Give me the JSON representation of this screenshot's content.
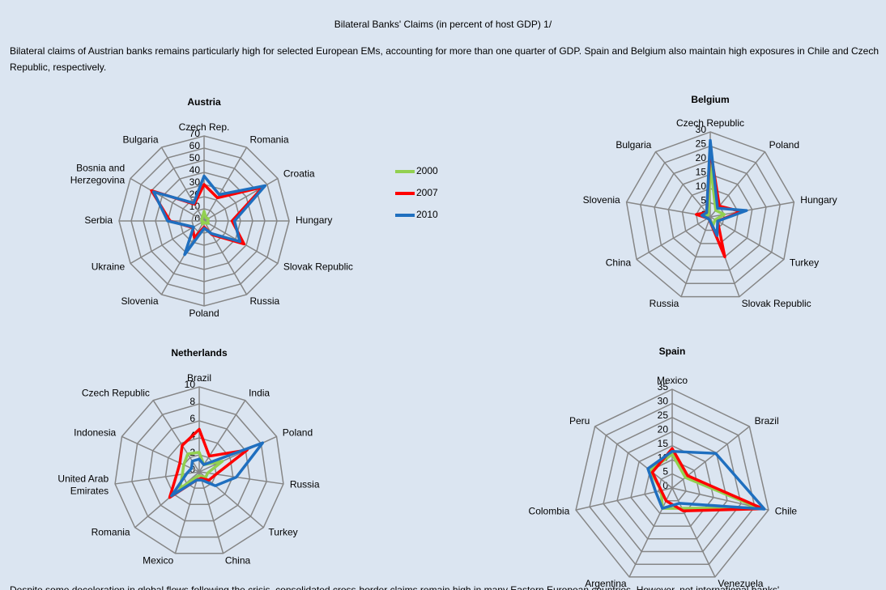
{
  "title": "Bilateral Banks' Claims (in percent of host GDP) 1/",
  "intro": "Bilateral claims of Austrian banks remains particularly high for selected European EMs, accounting for more than one quarter of GDP. Spain and Belgium also maintain high exposures in Chile and Czech Republic, respectively.",
  "footer": "Despite some deceleration in global flows following the crisis, consolidated cross-border claims remain high in many Eastern European countries. However, net international banks'",
  "chart_data": [
    {
      "type": "radar",
      "title": "Austria",
      "categories": [
        "Czech Rep.",
        "Romania",
        "Croatia",
        "Hungary",
        "Slovak Republic",
        "Russia",
        "Poland",
        "Slovenia",
        "Ukraine",
        "Serbia",
        "Bosnia and Herzegovina",
        "Bulgaria"
      ],
      "rlim": [
        0,
        70
      ],
      "rticks": [
        0,
        10,
        20,
        30,
        40,
        50,
        60,
        70
      ],
      "series": [
        {
          "name": "2000",
          "color": "#92d050",
          "values": [
            8,
            3,
            4,
            3,
            4,
            2,
            1,
            3,
            1,
            2,
            2,
            3
          ]
        },
        {
          "name": "2007",
          "color": "#ff0000",
          "values": [
            30,
            22,
            56,
            23,
            38,
            13,
            5,
            16,
            11,
            28,
            50,
            16
          ]
        },
        {
          "name": "2010",
          "color": "#1f6fbf",
          "values": [
            37,
            25,
            58,
            25,
            34,
            12,
            6,
            32,
            10,
            30,
            48,
            17
          ]
        }
      ]
    },
    {
      "type": "radar",
      "title": "Belgium",
      "categories": [
        "Czech Republic",
        "Poland",
        "Hungary",
        "Turkey",
        "Slovak Republic",
        "Russia",
        "China",
        "Slovenia",
        "Bulgaria"
      ],
      "rlim": [
        0,
        30
      ],
      "rticks": [
        0,
        5,
        10,
        15,
        20,
        25,
        30
      ],
      "series": [
        {
          "color": "#92d050",
          "values": [
            19,
            3,
            5,
            2,
            3,
            1,
            1,
            2,
            1
          ]
        },
        {
          "color": "#ff0000",
          "values": [
            24,
            5,
            11,
            3,
            15,
            1,
            1,
            5,
            2
          ]
        },
        {
          "color": "#1f6fbf",
          "values": [
            27,
            4,
            13,
            3,
            7,
            1,
            1,
            3,
            2
          ]
        }
      ]
    },
    {
      "type": "radar",
      "title": "Netherlands",
      "categories": [
        "Brazil",
        "India",
        "Poland",
        "Russia",
        "Turkey",
        "China",
        "Mexico",
        "Romania",
        "United Arab Emirates",
        "Indonesia",
        "Czech Republic"
      ],
      "rlim": [
        0,
        10
      ],
      "rticks": [
        0,
        2,
        4,
        6,
        8,
        10
      ],
      "series": [
        {
          "color": "#92d050",
          "values": [
            2.3,
            1,
            3,
            1,
            1,
            0.5,
            0.5,
            3,
            2,
            2,
            2.5
          ]
        },
        {
          "color": "#ff0000",
          "values": [
            5,
            2.2,
            6.2,
            2,
            1.5,
            0.8,
            1,
            4.6,
            2.7,
            2.5,
            3.7
          ]
        },
        {
          "color": "#1f6fbf",
          "values": [
            1.5,
            1,
            8.2,
            4.4,
            2.5,
            1,
            1,
            4.3,
            1.5,
            1,
            1.5
          ]
        }
      ]
    },
    {
      "type": "radar",
      "title": "Spain",
      "categories": [
        "Mexico",
        "Brazil",
        "Chile",
        "Venezuela",
        "Argentina",
        "Colombia",
        "Peru"
      ],
      "rlim": [
        0,
        35
      ],
      "rticks": [
        0,
        5,
        10,
        15,
        20,
        25,
        30,
        35
      ],
      "series": [
        {
          "color": "#92d050",
          "values": [
            12,
            6,
            31,
            8,
            8,
            4,
            10
          ]
        },
        {
          "color": "#ff0000",
          "values": [
            14,
            7,
            33,
            9,
            5,
            4,
            9
          ]
        },
        {
          "color": "#1f6fbf",
          "values": [
            13,
            19.7,
            33.5,
            6,
            8,
            6,
            11
          ]
        }
      ]
    }
  ]
}
